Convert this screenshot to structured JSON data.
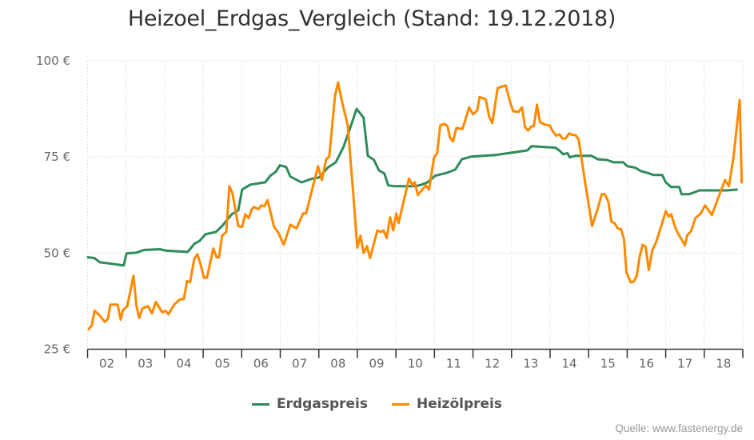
{
  "chart_data": {
    "type": "line",
    "title": "Heizoel_Erdgas_Vergleich (Stand: 19.12.2018)",
    "xlabel": "",
    "ylabel": "",
    "xlim": [
      2002,
      2019
    ],
    "ylim": [
      25,
      100
    ],
    "y_ticks": [
      25,
      50,
      75,
      100
    ],
    "y_tick_labels": [
      "25 €",
      "50 €",
      "75 €",
      "100 €"
    ],
    "x_tick_labels": [
      "02",
      "03",
      "04",
      "05",
      "06",
      "07",
      "08",
      "09",
      "10",
      "11",
      "12",
      "13",
      "14",
      "15",
      "16",
      "17",
      "18"
    ],
    "grid": true,
    "legend_position": "bottom",
    "series": [
      {
        "name": "Erdgaspreis",
        "color": "#2e8b5a",
        "x": [
          2002.01,
          2002.18,
          2002.32,
          2002.63,
          2002.94,
          2003.01,
          2003.26,
          2003.46,
          2003.88,
          2004.04,
          2004.6,
          2004.77,
          2004.91,
          2005.06,
          2005.33,
          2005.49,
          2005.74,
          2005.91,
          2006.01,
          2006.22,
          2006.61,
          2006.74,
          2006.88,
          2006.99,
          2007.15,
          2007.26,
          2007.55,
          2007.81,
          2008.02,
          2008.23,
          2008.44,
          2008.64,
          2008.85,
          2008.98,
          2009.16,
          2009.27,
          2009.43,
          2009.56,
          2009.7,
          2009.8,
          2009.95,
          2010.51,
          2010.67,
          2010.82,
          2011.02,
          2011.33,
          2011.54,
          2011.71,
          2011.96,
          2012.58,
          2013.41,
          2013.52,
          2014.14,
          2014.24,
          2014.34,
          2014.45,
          2014.51,
          2014.66,
          2015.07,
          2015.24,
          2015.48,
          2015.65,
          2015.9,
          2016.0,
          2016.21,
          2016.36,
          2016.52,
          2016.69,
          2016.91,
          2017.0,
          2017.14,
          2017.35,
          2017.41,
          2017.6,
          2017.77,
          2017.87,
          2017.98,
          2018.6,
          2018.84
        ],
        "y": [
          48.9,
          48.7,
          47.6,
          47.2,
          46.8,
          49.9,
          50.1,
          50.8,
          51.0,
          50.6,
          50.3,
          52.4,
          53.2,
          54.9,
          55.5,
          57.0,
          60.1,
          61.1,
          66.5,
          67.8,
          68.4,
          70.1,
          71.1,
          72.8,
          72.4,
          69.9,
          68.4,
          69.3,
          69.7,
          72.2,
          73.6,
          77.6,
          83.6,
          87.5,
          85.2,
          75.3,
          74.2,
          71.5,
          70.7,
          67.6,
          67.4,
          67.4,
          67.8,
          68.4,
          70.1,
          70.9,
          71.7,
          74.4,
          75.1,
          75.5,
          76.7,
          77.8,
          77.4,
          76.7,
          75.7,
          76.0,
          74.9,
          75.3,
          75.3,
          74.4,
          74.2,
          73.6,
          73.6,
          72.6,
          72.2,
          71.3,
          70.9,
          70.3,
          70.3,
          68.4,
          67.2,
          67.2,
          65.3,
          65.3,
          65.9,
          66.3,
          66.3,
          66.3,
          66.5
        ]
      },
      {
        "name": "Heizölpreis",
        "color": "#ff8a00",
        "x": [
          2002.03,
          2002.11,
          2002.18,
          2002.32,
          2002.45,
          2002.53,
          2002.59,
          2002.78,
          2002.86,
          2002.92,
          2003.03,
          2003.19,
          2003.27,
          2003.34,
          2003.42,
          2003.57,
          2003.67,
          2003.77,
          2003.94,
          2004.02,
          2004.1,
          2004.25,
          2004.39,
          2004.5,
          2004.58,
          2004.66,
          2004.77,
          2004.85,
          2004.93,
          2005.02,
          2005.1,
          2005.26,
          2005.35,
          2005.41,
          2005.49,
          2005.6,
          2005.68,
          2005.76,
          2005.91,
          2006.01,
          2006.09,
          2006.18,
          2006.26,
          2006.32,
          2006.43,
          2006.51,
          2006.59,
          2006.67,
          2006.84,
          2006.94,
          2007.09,
          2007.26,
          2007.42,
          2007.59,
          2007.67,
          2007.98,
          2008.08,
          2008.19,
          2008.27,
          2008.42,
          2008.5,
          2008.6,
          2008.75,
          2008.89,
          2009.0,
          2009.08,
          2009.16,
          2009.25,
          2009.33,
          2009.52,
          2009.6,
          2009.68,
          2009.76,
          2009.85,
          2009.93,
          2010.01,
          2010.07,
          2010.34,
          2010.43,
          2010.49,
          2010.57,
          2010.78,
          2010.86,
          2010.99,
          2011.07,
          2011.15,
          2011.26,
          2011.34,
          2011.4,
          2011.48,
          2011.57,
          2011.73,
          2011.84,
          2011.9,
          2012.0,
          2012.11,
          2012.17,
          2012.33,
          2012.42,
          2012.5,
          2012.64,
          2012.85,
          2012.96,
          2013.04,
          2013.18,
          2013.27,
          2013.35,
          2013.43,
          2013.52,
          2013.58,
          2013.66,
          2013.74,
          2013.87,
          2013.99,
          2014.07,
          2014.16,
          2014.24,
          2014.32,
          2014.4,
          2014.49,
          2014.59,
          2014.66,
          2014.74,
          2014.91,
          2015.09,
          2015.22,
          2015.34,
          2015.42,
          2015.51,
          2015.59,
          2015.67,
          2015.76,
          2015.84,
          2015.92,
          2015.98,
          2016.09,
          2016.17,
          2016.25,
          2016.32,
          2016.4,
          2016.48,
          2016.56,
          2016.65,
          2016.75,
          2016.9,
          2017.0,
          2017.08,
          2017.14,
          2017.25,
          2017.33,
          2017.39,
          2017.5,
          2017.56,
          2017.66,
          2017.77,
          2017.91,
          2018.02,
          2018.2,
          2018.36,
          2018.54,
          2018.64,
          2018.76,
          2018.92,
          2018.97
        ],
        "y": [
          30.2,
          31.2,
          35.0,
          33.7,
          32.1,
          32.9,
          36.6,
          36.6,
          32.7,
          35.2,
          36.2,
          44.1,
          36.2,
          33.1,
          35.6,
          36.2,
          34.3,
          37.3,
          34.6,
          35.0,
          34.1,
          36.6,
          37.9,
          38.1,
          42.7,
          42.4,
          48.5,
          49.7,
          47.2,
          43.6,
          43.6,
          51.2,
          48.9,
          48.9,
          54.5,
          55.5,
          67.4,
          65.5,
          57.0,
          56.8,
          60.1,
          59.1,
          61.4,
          62.0,
          61.4,
          62.4,
          62.2,
          63.8,
          56.8,
          55.5,
          52.2,
          57.4,
          56.4,
          60.3,
          60.3,
          72.6,
          69.0,
          74.4,
          75.1,
          90.9,
          94.4,
          89.4,
          83.2,
          65.9,
          51.4,
          54.5,
          50.0,
          51.8,
          48.7,
          55.9,
          55.5,
          55.9,
          53.9,
          59.3,
          55.9,
          60.3,
          57.8,
          69.4,
          67.6,
          68.4,
          65.1,
          67.6,
          66.5,
          74.9,
          75.9,
          83.2,
          83.6,
          83.0,
          80.1,
          79.0,
          82.5,
          82.3,
          85.9,
          87.9,
          86.1,
          87.1,
          90.6,
          90.0,
          85.5,
          83.8,
          92.9,
          93.6,
          89.4,
          86.9,
          86.7,
          87.9,
          82.8,
          81.9,
          83.0,
          83.0,
          88.6,
          84.0,
          83.4,
          83.2,
          81.7,
          80.5,
          80.9,
          79.8,
          79.8,
          81.1,
          80.7,
          80.7,
          79.6,
          68.4,
          57.0,
          61.1,
          65.3,
          65.3,
          63.4,
          58.2,
          57.8,
          56.4,
          56.2,
          53.5,
          45.1,
          42.4,
          42.6,
          44.1,
          48.9,
          52.2,
          51.6,
          45.6,
          50.6,
          52.8,
          57.6,
          60.9,
          59.5,
          60.1,
          56.6,
          54.9,
          53.9,
          52.0,
          54.7,
          55.7,
          59.1,
          60.3,
          62.4,
          59.9,
          64.3,
          69.0,
          67.4,
          74.9,
          89.8,
          68.4
        ]
      }
    ]
  },
  "legend": {
    "items": [
      "Erdgaspreis",
      "Heizölpreis"
    ]
  },
  "source": "Quelle: www.fastenergy.de"
}
